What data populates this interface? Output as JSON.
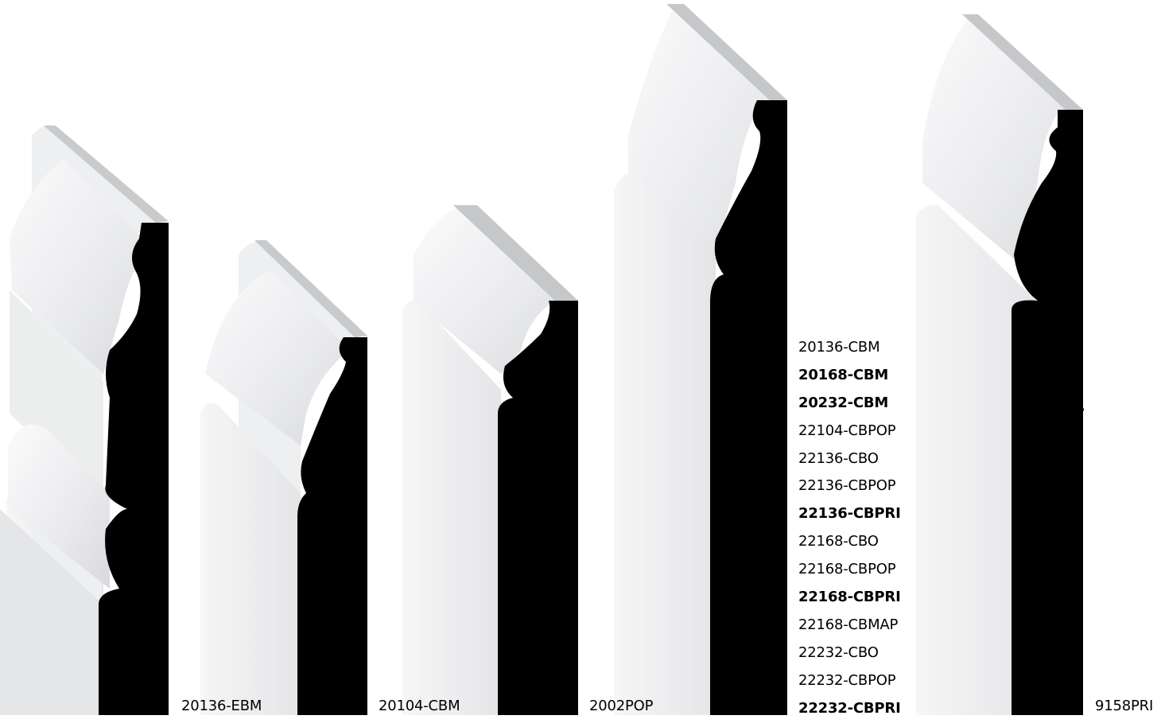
{
  "colors": {
    "background": "#ffffff",
    "profile_black": "#000000",
    "face_white": "#f3f3f4",
    "face_shade": "#e2e3e5",
    "top_edge": "#c6c7c9"
  },
  "mouldings": [
    {
      "name": "baseboard-1",
      "label": "20136-EBM"
    },
    {
      "name": "baseboard-2",
      "label": "20104-CBM"
    },
    {
      "name": "baseboard-3",
      "label": "2002POP"
    },
    {
      "name": "baseboard-4",
      "label": ""
    },
    {
      "name": "baseboard-5",
      "label": "9158PRI"
    }
  ],
  "code_list": [
    {
      "code": "20136-CBM",
      "bold": false
    },
    {
      "code": "20168-CBM",
      "bold": true
    },
    {
      "code": "20232-CBM",
      "bold": true
    },
    {
      "code": "22104-CBPOP",
      "bold": false
    },
    {
      "code": "22136-CBO",
      "bold": false
    },
    {
      "code": "22136-CBPOP",
      "bold": false
    },
    {
      "code": "22136-CBPRI",
      "bold": true
    },
    {
      "code": "22168-CBO",
      "bold": false
    },
    {
      "code": "22168-CBPOP",
      "bold": false
    },
    {
      "code": "22168-CBPRI",
      "bold": true
    },
    {
      "code": "22168-CBMAP",
      "bold": false
    },
    {
      "code": "22232-CBO",
      "bold": false
    },
    {
      "code": "22232-CBPOP",
      "bold": false
    },
    {
      "code": "22232-CBPRI",
      "bold": true
    }
  ]
}
